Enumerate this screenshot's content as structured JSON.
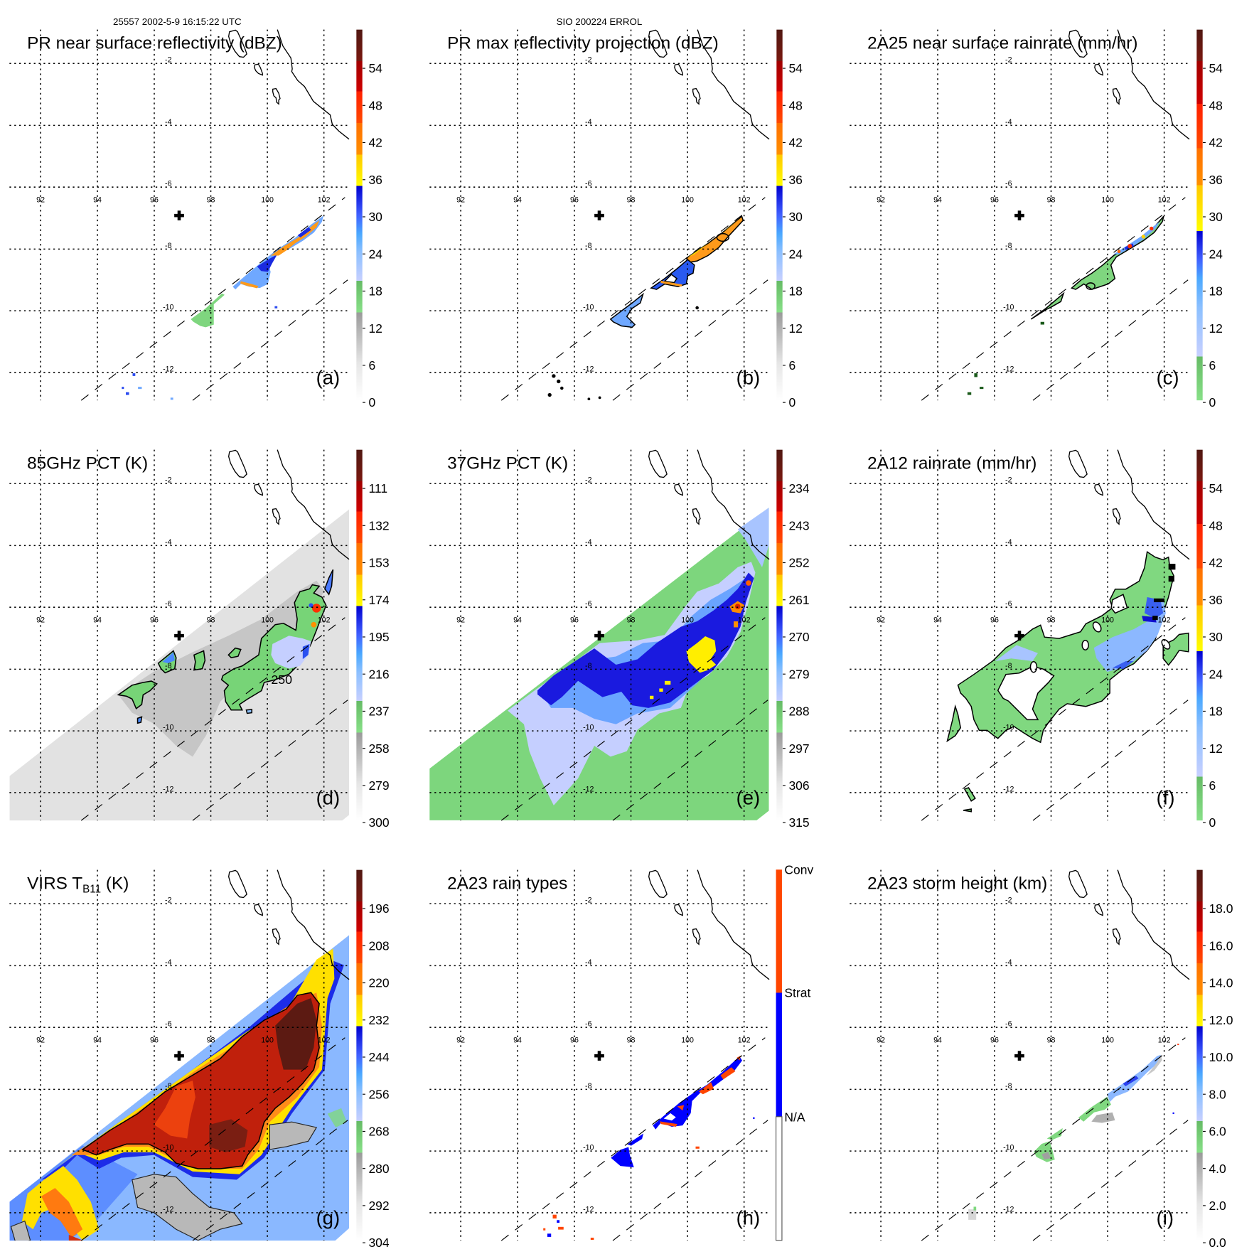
{
  "header": {
    "orbit_time": "25557 2002-5-9 16:15:22 UTC",
    "case_name": "SIO 200224 ERROL"
  },
  "map": {
    "lon_labels": [
      "92",
      "94",
      "96",
      "98",
      "100",
      "102"
    ],
    "lat_labels": [
      "-2",
      "-4",
      "-6",
      "-8",
      "-10",
      "-12"
    ]
  },
  "colors": {
    "convective": "#ff4500",
    "stratiform": "#0000ff",
    "na": "#ffffff"
  },
  "panels": [
    {
      "id": "a",
      "title": "PR near surface reflectivity (dBZ)",
      "letter": "(a)",
      "colorbar": {
        "labels": [
          "54",
          "48",
          "42",
          "36",
          "30",
          "24",
          "18",
          "12",
          "6",
          "0"
        ]
      }
    },
    {
      "id": "b",
      "title": "PR max reflectivity projection (dBZ)",
      "letter": "(b)",
      "colorbar": {
        "labels": [
          "54",
          "48",
          "42",
          "36",
          "30",
          "24",
          "18",
          "12",
          "6",
          "0"
        ]
      }
    },
    {
      "id": "c",
      "title": "2A25 near surface rainrate (mm/hr)",
      "letter": "(c)",
      "colorbar": {
        "labels": [
          "54",
          "48",
          "42",
          "36",
          "30",
          "24",
          "18",
          "12",
          "6",
          "0"
        ]
      }
    },
    {
      "id": "d",
      "title": "85GHz PCT (K)",
      "letter": "(d)",
      "contour_label": "250",
      "colorbar": {
        "labels": [
          "111",
          "132",
          "153",
          "174",
          "195",
          "216",
          "237",
          "258",
          "279",
          "300"
        ]
      }
    },
    {
      "id": "e",
      "title": "37GHz PCT (K)",
      "letter": "(e)",
      "colorbar": {
        "labels": [
          "234",
          "243",
          "252",
          "261",
          "270",
          "279",
          "288",
          "297",
          "306",
          "315"
        ]
      }
    },
    {
      "id": "f",
      "title": "2A12 rainrate (mm/hr)",
      "letter": "(f)",
      "colorbar": {
        "labels": [
          "54",
          "48",
          "42",
          "36",
          "30",
          "24",
          "18",
          "12",
          "6",
          "0"
        ]
      }
    },
    {
      "id": "g",
      "title": "VIRS T",
      "title_sub": "B11",
      "title_suffix": " (K)",
      "letter": "(g)",
      "colorbar": {
        "labels": [
          "196",
          "208",
          "220",
          "232",
          "244",
          "256",
          "268",
          "280",
          "292",
          "304"
        ]
      }
    },
    {
      "id": "h",
      "title": "2A23 rain types",
      "letter": "(h)",
      "colorbar": {
        "labels": [
          "Conv",
          "Strat",
          "N/A"
        ]
      }
    },
    {
      "id": "i",
      "title": "2A23 storm height (km)",
      "letter": "(i)",
      "colorbar": {
        "labels": [
          "18.0",
          "16.0",
          "14.0",
          "12.0",
          "10.0",
          "8.0",
          "6.0",
          "4.0",
          "2.0",
          "0.0"
        ]
      }
    }
  ]
}
